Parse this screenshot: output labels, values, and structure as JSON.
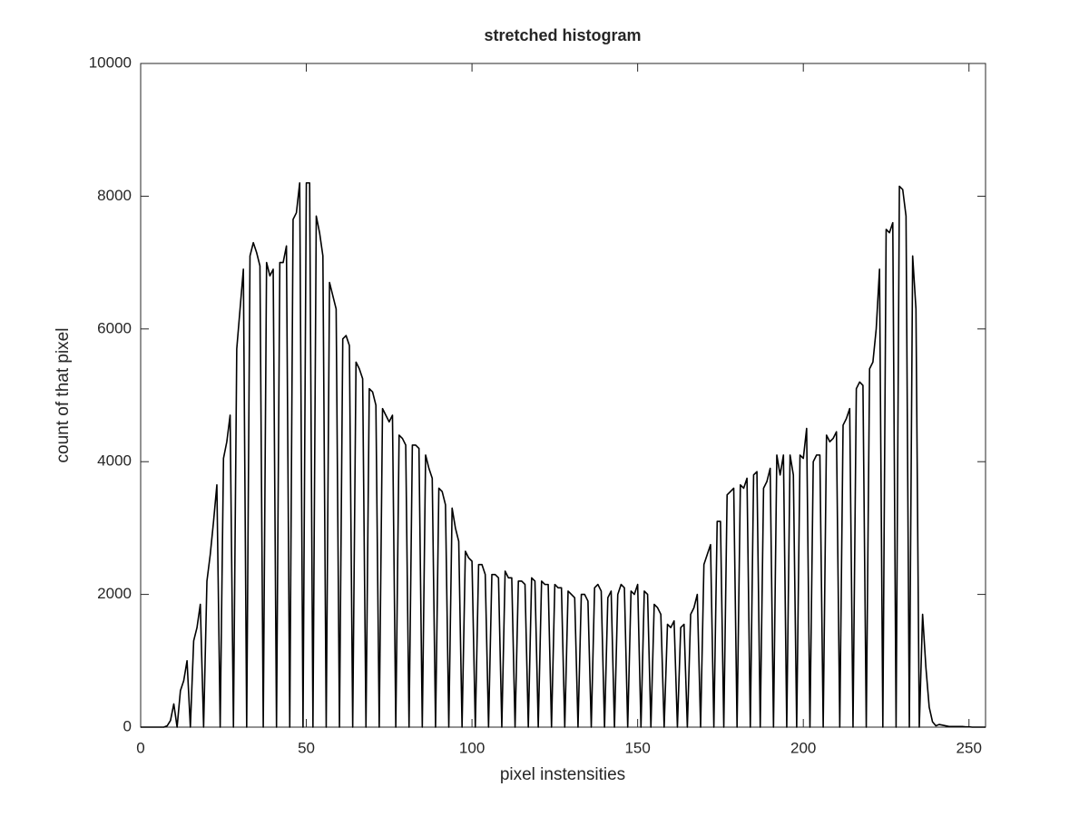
{
  "chart_data": {
    "type": "line",
    "title": "stretched histogram",
    "xlabel": "pixel instensities",
    "ylabel": "count of that pixel",
    "x": [
      0,
      1,
      2,
      3,
      4,
      5,
      6,
      7,
      8,
      9,
      10,
      11,
      12,
      13,
      14,
      15,
      16,
      17,
      18,
      19,
      20,
      21,
      22,
      23,
      24,
      25,
      26,
      27,
      28,
      29,
      30,
      31,
      32,
      33,
      34,
      35,
      36,
      37,
      38,
      39,
      40,
      41,
      42,
      43,
      44,
      45,
      46,
      47,
      48,
      49,
      50,
      51,
      52,
      53,
      54,
      55,
      56,
      57,
      58,
      59,
      60,
      61,
      62,
      63,
      64,
      65,
      66,
      67,
      68,
      69,
      70,
      71,
      72,
      73,
      74,
      75,
      76,
      77,
      78,
      79,
      80,
      81,
      82,
      83,
      84,
      85,
      86,
      87,
      88,
      89,
      90,
      91,
      92,
      93,
      94,
      95,
      96,
      97,
      98,
      99,
      100,
      101,
      102,
      103,
      104,
      105,
      106,
      107,
      108,
      109,
      110,
      111,
      112,
      113,
      114,
      115,
      116,
      117,
      118,
      119,
      120,
      121,
      122,
      123,
      124,
      125,
      126,
      127,
      128,
      129,
      130,
      131,
      132,
      133,
      134,
      135,
      136,
      137,
      138,
      139,
      140,
      141,
      142,
      143,
      144,
      145,
      146,
      147,
      148,
      149,
      150,
      151,
      152,
      153,
      154,
      155,
      156,
      157,
      158,
      159,
      160,
      161,
      162,
      163,
      164,
      165,
      166,
      167,
      168,
      169,
      170,
      171,
      172,
      173,
      174,
      175,
      176,
      177,
      178,
      179,
      180,
      181,
      182,
      183,
      184,
      185,
      186,
      187,
      188,
      189,
      190,
      191,
      192,
      193,
      194,
      195,
      196,
      197,
      198,
      199,
      200,
      201,
      202,
      203,
      204,
      205,
      206,
      207,
      208,
      209,
      210,
      211,
      212,
      213,
      214,
      215,
      216,
      217,
      218,
      219,
      220,
      221,
      222,
      223,
      224,
      225,
      226,
      227,
      228,
      229,
      230,
      231,
      232,
      233,
      234,
      235,
      236,
      237,
      238,
      239,
      240,
      241,
      242,
      243,
      244,
      245,
      246,
      247,
      248,
      249,
      250,
      251,
      252,
      253,
      254,
      255
    ],
    "values": [
      0,
      0,
      0,
      0,
      0,
      0,
      0,
      0,
      20,
      100,
      350,
      0,
      550,
      700,
      1000,
      0,
      1300,
      1500,
      1850,
      0,
      2200,
      2600,
      3100,
      3650,
      0,
      4050,
      4300,
      4700,
      0,
      5700,
      6300,
      6900,
      0,
      7100,
      7300,
      7150,
      6950,
      0,
      7000,
      6800,
      6900,
      0,
      7000,
      7000,
      7250,
      0,
      7650,
      7750,
      8200,
      0,
      8200,
      8200,
      0,
      7700,
      7450,
      7100,
      0,
      6700,
      6500,
      6300,
      0,
      5850,
      5900,
      5750,
      0,
      5500,
      5400,
      5250,
      0,
      5100,
      5050,
      4850,
      0,
      4800,
      4700,
      4600,
      4700,
      0,
      4400,
      4350,
      4250,
      0,
      4250,
      4250,
      4200,
      0,
      4100,
      3900,
      3750,
      0,
      3600,
      3550,
      3350,
      0,
      3300,
      3000,
      2800,
      0,
      2650,
      2550,
      2500,
      0,
      2450,
      2450,
      2300,
      0,
      2300,
      2300,
      2250,
      0,
      2350,
      2250,
      2250,
      0,
      2200,
      2200,
      2150,
      0,
      2250,
      2200,
      0,
      2200,
      2150,
      2150,
      0,
      2150,
      2100,
      2100,
      0,
      2050,
      2000,
      1950,
      0,
      2000,
      2000,
      1900,
      0,
      2100,
      2150,
      2050,
      0,
      1950,
      2050,
      0,
      2000,
      2150,
      2100,
      0,
      2050,
      2000,
      2150,
      0,
      2050,
      2000,
      0,
      1850,
      1800,
      1700,
      0,
      1550,
      1500,
      1600,
      0,
      1500,
      1550,
      0,
      1700,
      1800,
      2000,
      0,
      2450,
      2600,
      2750,
      0,
      3100,
      3100,
      0,
      3500,
      3550,
      3600,
      0,
      3650,
      3600,
      3750,
      0,
      3800,
      3850,
      0,
      3600,
      3700,
      3900,
      0,
      4100,
      3800,
      4100,
      0,
      4100,
      3800,
      0,
      4100,
      4050,
      4500,
      0,
      4000,
      4100,
      4100,
      0,
      4400,
      4300,
      4350,
      4450,
      0,
      4550,
      4650,
      4800,
      0,
      5100,
      5200,
      5150,
      0,
      5400,
      5500,
      6000,
      6900,
      0,
      7500,
      7450,
      7600,
      0,
      8150,
      8100,
      7700,
      0,
      7100,
      6300,
      0,
      1700,
      900,
      300,
      80,
      20,
      40,
      30,
      20,
      10,
      10,
      10,
      10,
      10,
      5,
      5,
      0,
      0,
      0,
      0,
      0
    ],
    "color": "#000000",
    "xlim": [
      0,
      255
    ],
    "xticks": [
      0,
      50,
      100,
      150,
      200,
      250
    ],
    "ylim": [
      0,
      10000
    ],
    "yticks": [
      0,
      2000,
      4000,
      6000,
      8000,
      10000
    ]
  }
}
